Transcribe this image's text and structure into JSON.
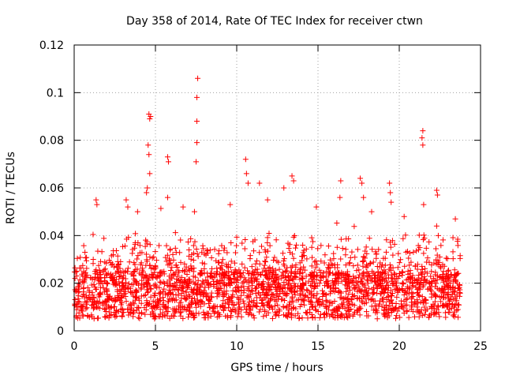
{
  "chart_data": {
    "type": "scatter",
    "title": "Day 358 of 2014, Rate Of TEC Index for receiver ctwn",
    "xlabel": "GPS time / hours",
    "ylabel": "ROTI / TECUs",
    "xlim": [
      0,
      25
    ],
    "ylim": [
      0,
      0.12
    ],
    "xticks": [
      0,
      5,
      10,
      15,
      20,
      25
    ],
    "xtick_labels": [
      "0",
      "5",
      "10",
      "15",
      "20",
      "25"
    ],
    "yticks": [
      0,
      0.02,
      0.04,
      0.06,
      0.08,
      0.1,
      0.12
    ],
    "ytick_labels": [
      "0",
      "0.02",
      "0.04",
      "0.06",
      "0.08",
      "0.1",
      "0.12"
    ],
    "grid": true,
    "marker": "+",
    "series": [
      {
        "name": "ROTI",
        "color": "#ff0000",
        "x_range": [
          0.0,
          23.75
        ],
        "baseline_range": [
          0.005,
          0.025
        ],
        "points": [
          {
            "x": 4.6,
            "y": 0.091
          },
          {
            "x": 4.65,
            "y": 0.089
          },
          {
            "x": 4.7,
            "y": 0.09
          },
          {
            "x": 4.55,
            "y": 0.078
          },
          {
            "x": 4.6,
            "y": 0.074
          },
          {
            "x": 4.65,
            "y": 0.066
          },
          {
            "x": 4.5,
            "y": 0.06
          },
          {
            "x": 4.45,
            "y": 0.058
          },
          {
            "x": 5.75,
            "y": 0.073
          },
          {
            "x": 5.8,
            "y": 0.071
          },
          {
            "x": 5.75,
            "y": 0.056
          },
          {
            "x": 7.6,
            "y": 0.106
          },
          {
            "x": 7.55,
            "y": 0.098
          },
          {
            "x": 7.55,
            "y": 0.088
          },
          {
            "x": 7.55,
            "y": 0.079
          },
          {
            "x": 7.5,
            "y": 0.071
          },
          {
            "x": 7.4,
            "y": 0.05
          },
          {
            "x": 10.55,
            "y": 0.072
          },
          {
            "x": 10.6,
            "y": 0.066
          },
          {
            "x": 10.7,
            "y": 0.062
          },
          {
            "x": 11.4,
            "y": 0.062
          },
          {
            "x": 12.9,
            "y": 0.06
          },
          {
            "x": 13.4,
            "y": 0.065
          },
          {
            "x": 13.5,
            "y": 0.063
          },
          {
            "x": 16.4,
            "y": 0.063
          },
          {
            "x": 16.35,
            "y": 0.056
          },
          {
            "x": 17.6,
            "y": 0.064
          },
          {
            "x": 17.7,
            "y": 0.062
          },
          {
            "x": 17.8,
            "y": 0.056
          },
          {
            "x": 19.4,
            "y": 0.062
          },
          {
            "x": 19.45,
            "y": 0.058
          },
          {
            "x": 19.5,
            "y": 0.054
          },
          {
            "x": 21.45,
            "y": 0.084
          },
          {
            "x": 21.4,
            "y": 0.081
          },
          {
            "x": 21.45,
            "y": 0.078
          },
          {
            "x": 21.5,
            "y": 0.053
          },
          {
            "x": 22.3,
            "y": 0.059
          },
          {
            "x": 22.35,
            "y": 0.057
          },
          {
            "x": 22.3,
            "y": 0.044
          },
          {
            "x": 22.4,
            "y": 0.04
          },
          {
            "x": 1.35,
            "y": 0.055
          },
          {
            "x": 1.4,
            "y": 0.053
          },
          {
            "x": 3.2,
            "y": 0.055
          },
          {
            "x": 3.3,
            "y": 0.052
          },
          {
            "x": 3.9,
            "y": 0.05
          },
          {
            "x": 6.7,
            "y": 0.052
          },
          {
            "x": 9.6,
            "y": 0.053
          },
          {
            "x": 11.9,
            "y": 0.055
          },
          {
            "x": 14.9,
            "y": 0.052
          },
          {
            "x": 18.3,
            "y": 0.05
          },
          {
            "x": 20.3,
            "y": 0.048
          },
          {
            "x": 23.45,
            "y": 0.047
          }
        ]
      }
    ]
  }
}
